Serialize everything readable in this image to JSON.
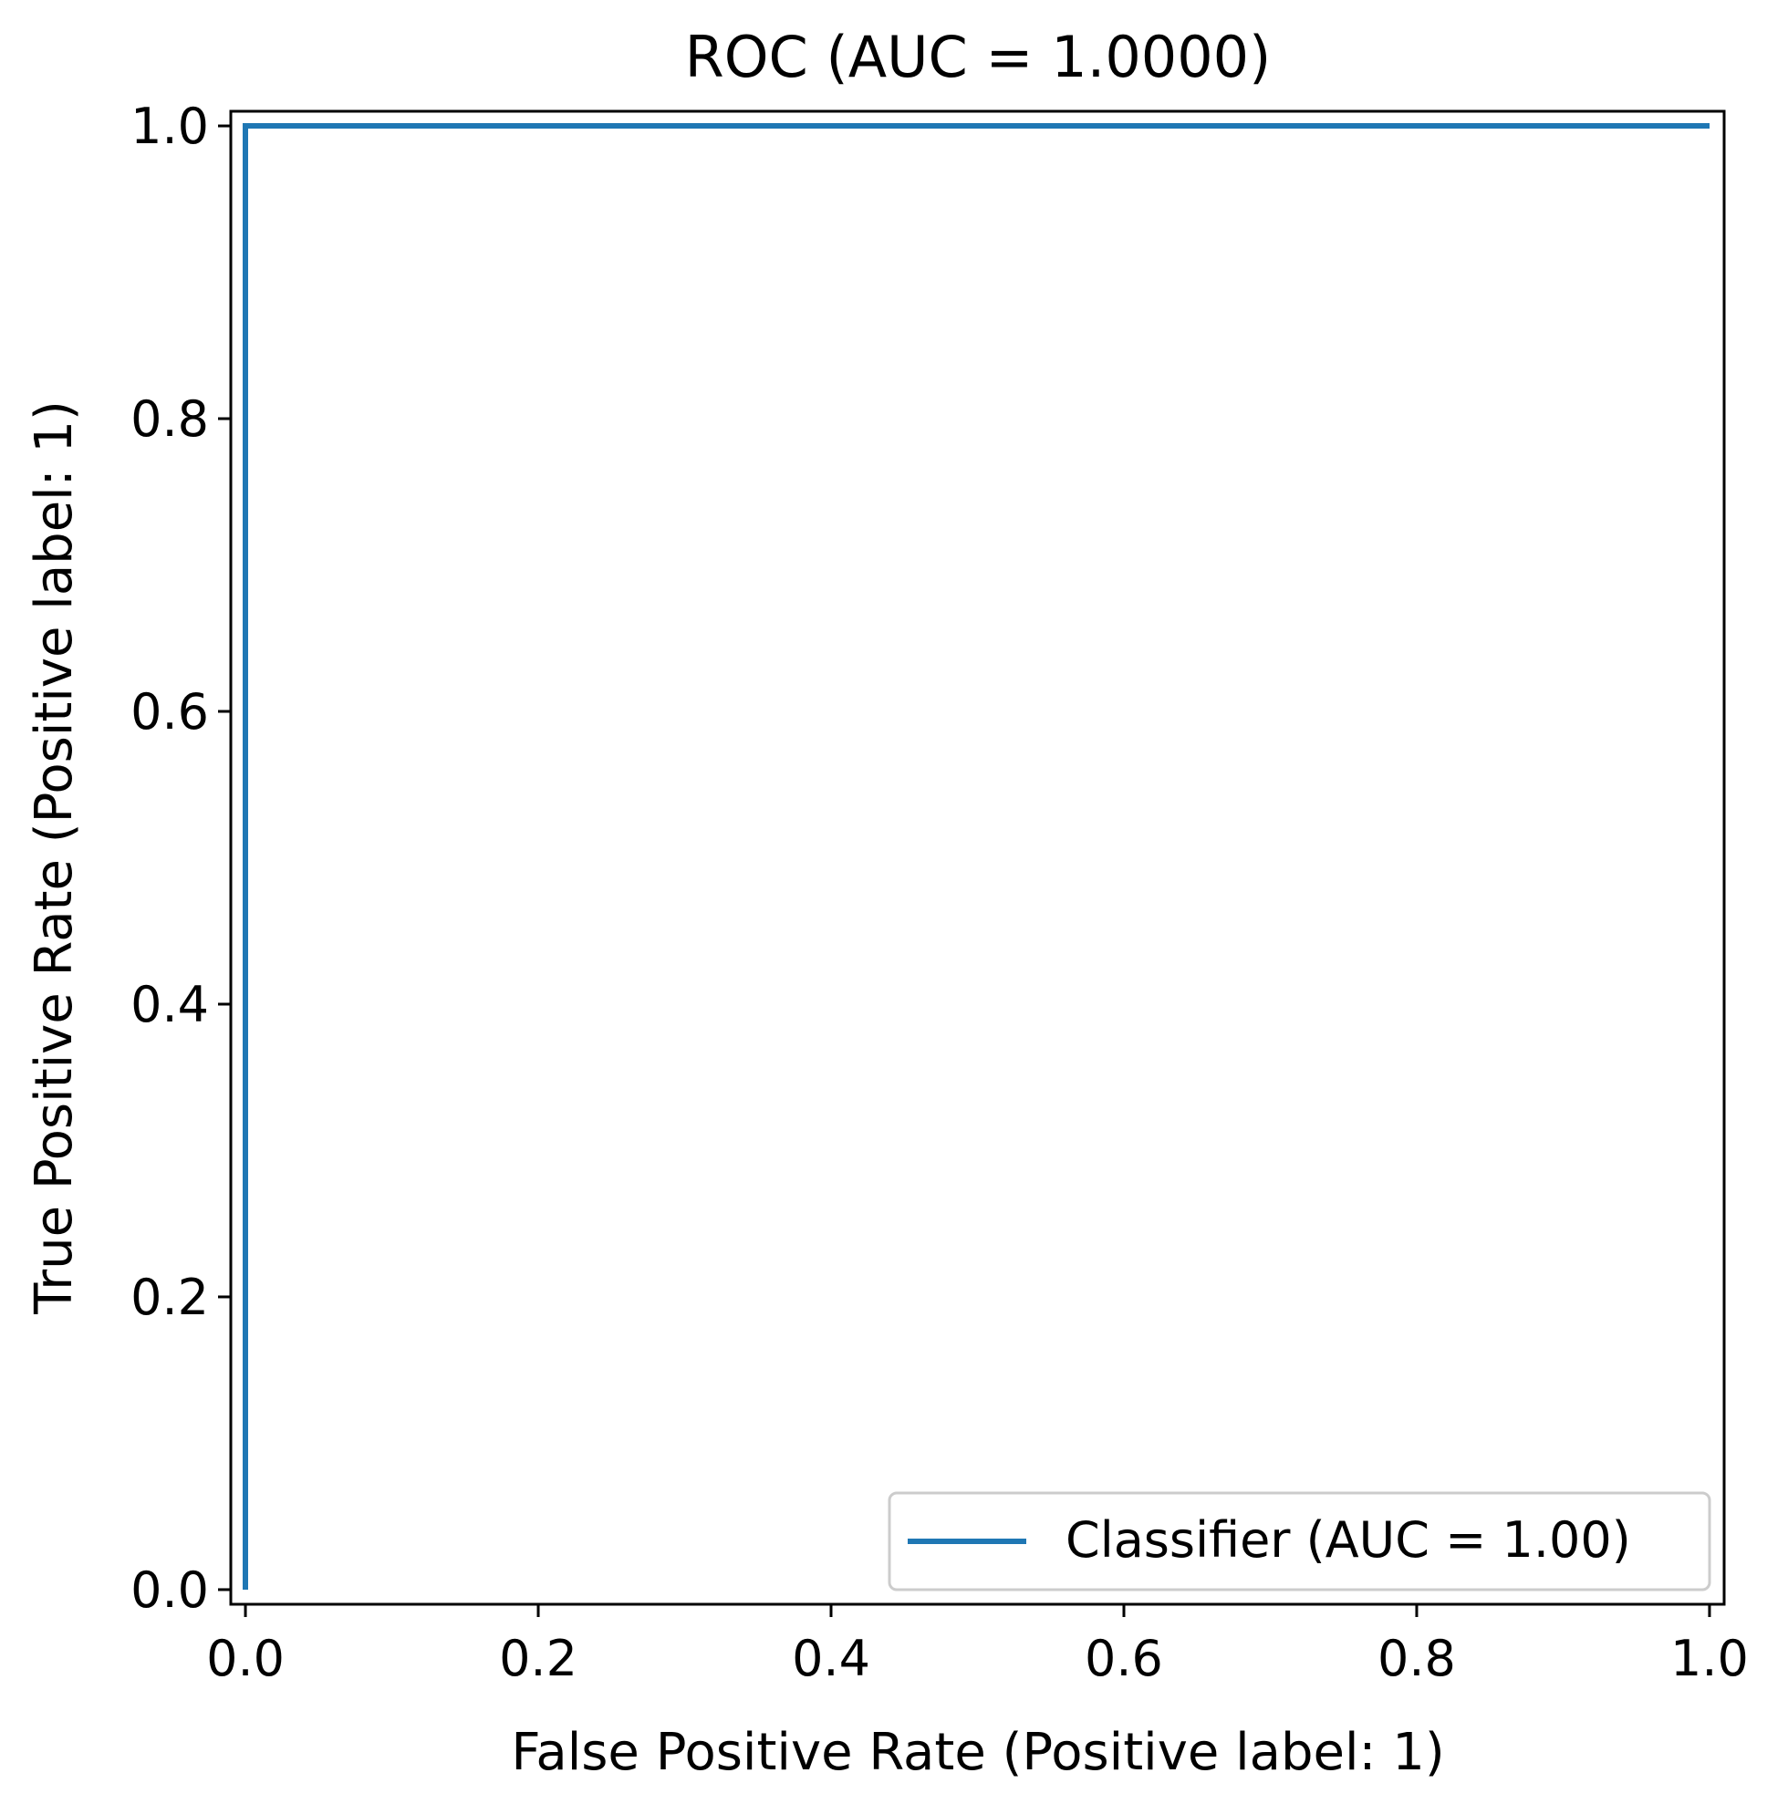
{
  "chart_data": {
    "type": "line",
    "title": "ROC (AUC = 1.0000)",
    "xlabel": "False Positive Rate (Positive label: 1)",
    "ylabel": "True Positive Rate (Positive label: 1)",
    "xlim": [
      -0.01,
      1.01
    ],
    "ylim": [
      -0.01,
      1.01
    ],
    "xticks": [
      0.0,
      0.2,
      0.4,
      0.6,
      0.8,
      1.0
    ],
    "xtick_labels": [
      "0.0",
      "0.2",
      "0.4",
      "0.6",
      "0.8",
      "1.0"
    ],
    "yticks": [
      0.0,
      0.2,
      0.4,
      0.6,
      0.8,
      1.0
    ],
    "ytick_labels": [
      "0.0",
      "0.2",
      "0.4",
      "0.6",
      "0.8",
      "1.0"
    ],
    "grid": false,
    "legend_position": "bottom-right",
    "series": [
      {
        "name": "Classifier (AUC = 1.00)",
        "color": "#1f77b4",
        "x": [
          0.0,
          0.0,
          1.0
        ],
        "y": [
          0.0,
          1.0,
          1.0
        ]
      }
    ]
  }
}
